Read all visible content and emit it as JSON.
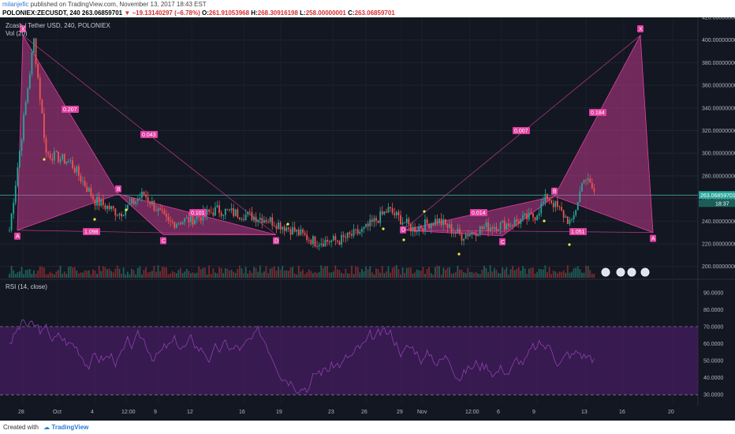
{
  "header": {
    "user": "milanjefic",
    "published": "published on TradingView.com, November 13, 2017 18:43 EST",
    "symbol": "POLONIEX:ZECUSDT, 240",
    "last": "263.06859701",
    "change": "▼ −19.13140297 (−6.78%)",
    "o_label": "O:",
    "o_val": "261.91053968",
    "h_label": "H:",
    "h_val": "268.30916198",
    "l_label": "L:",
    "l_val": "258.00000001",
    "c_label": "C:",
    "c_val": "263.06859701"
  },
  "legend": {
    "series_title": "Zcash / Tether USD, 240, POLONIEX",
    "volume": "Vol (20)",
    "rsi": "RSI (14, close)"
  },
  "footer": {
    "created_with": "Created with",
    "brand": "TradingView"
  },
  "colors": {
    "up": "#26a69a",
    "down": "#ef5350",
    "pattern": "#e040a0",
    "rsi": "#7b1fa2",
    "bg": "#131722"
  },
  "chart_data": [
    {
      "type": "line",
      "subtype": "candlestick",
      "title": "Zcash / Tether USD, 240, POLONIEX",
      "xlabel": "",
      "ylabel": "",
      "x_ticks": [
        "28",
        "Oct",
        "4",
        "12:00",
        "9",
        "12",
        "16",
        "19",
        "23",
        "26",
        "29",
        "Nov",
        "12:00",
        "6",
        "9",
        "13",
        "16",
        "20"
      ],
      "y_ticks": [
        "420.00000000",
        "400.00000000",
        "380.00000000",
        "360.00000000",
        "340.00000000",
        "320.00000000",
        "300.00000000",
        "280.00000000",
        "260.00000000",
        "240.00000000",
        "220.00000000",
        "200.00000000"
      ],
      "ylim": [
        190,
        420
      ],
      "price_label": "263.06859701",
      "time_label": "18:37",
      "close_path": [
        {
          "x": "Sep 26",
          "y": 232
        },
        {
          "x": "Sep 28",
          "y": 400
        },
        {
          "x": "Sep 29",
          "y": 300
        },
        {
          "x": "Oct 1",
          "y": 292
        },
        {
          "x": "Oct 3",
          "y": 258
        },
        {
          "x": "Oct 5",
          "y": 247
        },
        {
          "x": "Oct 7",
          "y": 264
        },
        {
          "x": "Oct 9",
          "y": 238
        },
        {
          "x": "Oct 11",
          "y": 242
        },
        {
          "x": "Oct 13",
          "y": 250
        },
        {
          "x": "Oct 15",
          "y": 246
        },
        {
          "x": "Oct 17",
          "y": 242
        },
        {
          "x": "Oct 19",
          "y": 233
        },
        {
          "x": "Oct 21",
          "y": 222
        },
        {
          "x": "Oct 23",
          "y": 223
        },
        {
          "x": "Oct 25",
          "y": 232
        },
        {
          "x": "Oct 27",
          "y": 250
        },
        {
          "x": "Oct 29",
          "y": 233
        },
        {
          "x": "Oct 31",
          "y": 241
        },
        {
          "x": "Nov 2",
          "y": 227
        },
        {
          "x": "Nov 4",
          "y": 235
        },
        {
          "x": "Nov 6",
          "y": 238
        },
        {
          "x": "Nov 8",
          "y": 245
        },
        {
          "x": "Nov 9",
          "y": 262
        },
        {
          "x": "Nov 11",
          "y": 237
        },
        {
          "x": "Nov 12",
          "y": 280
        },
        {
          "x": "Nov 13",
          "y": 263
        }
      ],
      "pattern_labels": [
        "A",
        "B",
        "C",
        "D",
        "X",
        "A",
        "B",
        "C",
        "D",
        "X",
        "A"
      ],
      "ratios": [
        "0.207",
        "0.043",
        "1.098",
        "0.101",
        "0.007",
        "0.014",
        "1.051",
        "0.184"
      ]
    },
    {
      "type": "line",
      "title": "RSI (14, close)",
      "y_ticks": [
        "90.0000",
        "80.0000",
        "70.0000",
        "60.0000",
        "50.0000",
        "40.0000",
        "30.0000"
      ],
      "ylim": [
        25,
        95
      ],
      "bands": [
        30,
        70
      ],
      "last_value": "55.5000"
    }
  ]
}
